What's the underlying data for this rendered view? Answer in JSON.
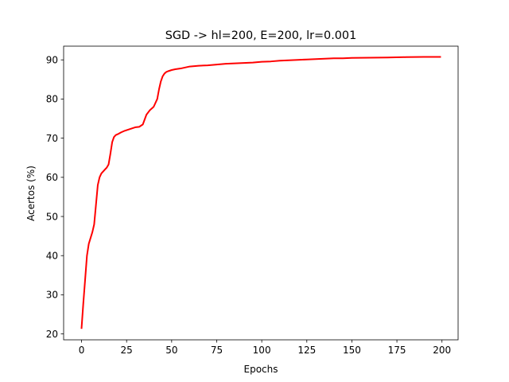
{
  "chart_data": {
    "type": "line",
    "title": "SGD -> hl=200, E=200, lr=0.001",
    "xlabel": "Epochs",
    "ylabel": "Acertos (%)",
    "xlim": [
      -9.95,
      208.95
    ],
    "ylim": [
      18.5,
      93.5
    ],
    "xticks": [
      0,
      25,
      50,
      75,
      100,
      125,
      150,
      175,
      200
    ],
    "yticks": [
      20,
      30,
      40,
      50,
      60,
      70,
      80,
      90
    ],
    "grid": false,
    "legend": "none",
    "series": [
      {
        "color": "#ff0000",
        "x": [
          0,
          1,
          2,
          3,
          4,
          5,
          6,
          7,
          8,
          9,
          10,
          11,
          12,
          13,
          14,
          15,
          16,
          17,
          18,
          19,
          20,
          22,
          24,
          26,
          28,
          30,
          32,
          34,
          36,
          38,
          40,
          42,
          43,
          44,
          45,
          46,
          47,
          48,
          50,
          52,
          55,
          58,
          60,
          65,
          70,
          75,
          80,
          85,
          90,
          95,
          100,
          105,
          110,
          115,
          120,
          125,
          130,
          135,
          140,
          145,
          150,
          160,
          170,
          180,
          190,
          199
        ],
        "y": [
          21.5,
          28,
          34,
          40,
          43,
          44.5,
          46,
          48,
          53,
          58,
          60,
          61,
          61.5,
          62,
          62.5,
          63.3,
          66,
          69,
          70.3,
          70.8,
          71,
          71.5,
          71.9,
          72.2,
          72.5,
          72.8,
          72.9,
          73.5,
          76,
          77.2,
          78,
          80,
          82.5,
          84.5,
          85.8,
          86.5,
          86.9,
          87.1,
          87.4,
          87.6,
          87.8,
          88.1,
          88.3,
          88.5,
          88.6,
          88.8,
          89,
          89.1,
          89.2,
          89.3,
          89.5,
          89.6,
          89.8,
          89.9,
          90,
          90.1,
          90.2,
          90.3,
          90.4,
          90.4,
          90.5,
          90.55,
          90.6,
          90.7,
          90.75,
          90.75
        ]
      }
    ]
  }
}
